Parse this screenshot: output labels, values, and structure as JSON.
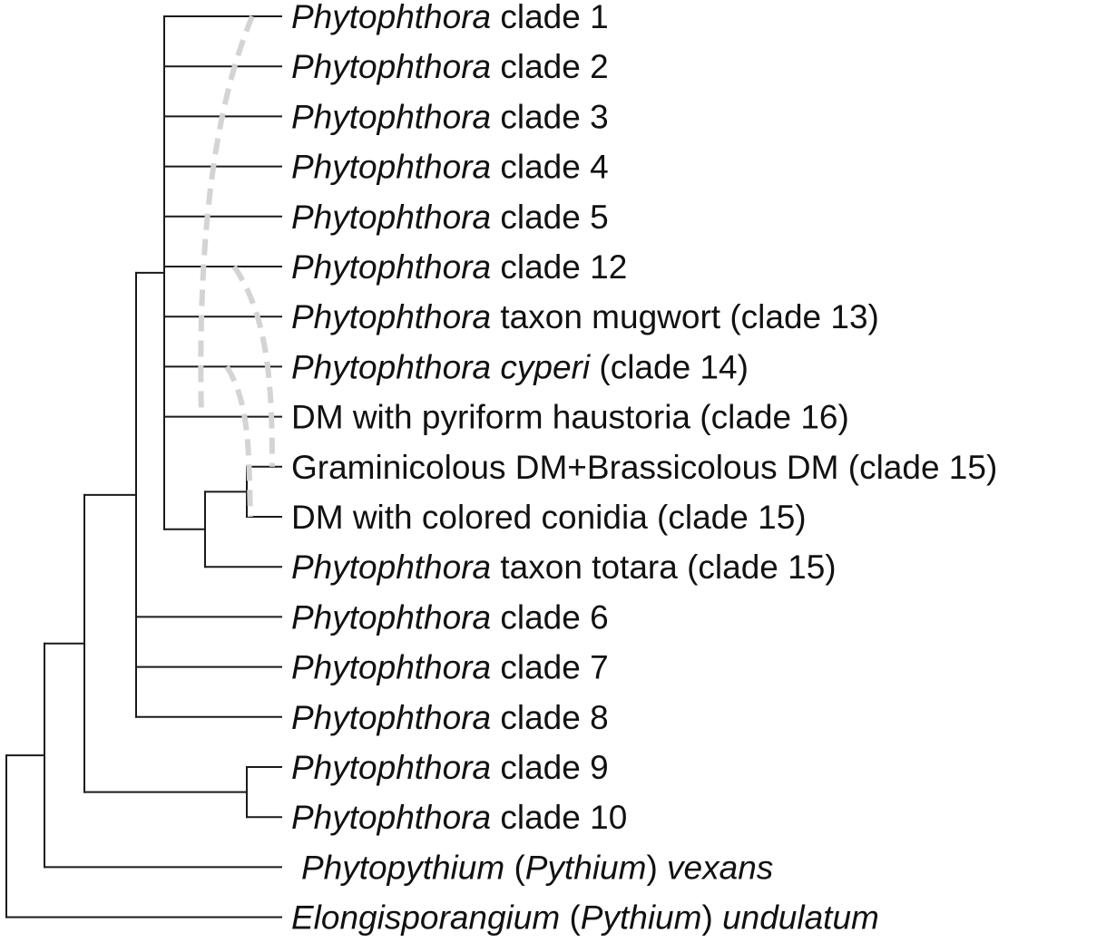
{
  "tree": {
    "tips": [
      {
        "id": "clade1",
        "parts": [
          {
            "text": "Phytophthora",
            "italic": true
          },
          {
            "text": " clade 1",
            "italic": false
          }
        ]
      },
      {
        "id": "clade2",
        "parts": [
          {
            "text": "Phytophthora",
            "italic": true
          },
          {
            "text": " clade 2",
            "italic": false
          }
        ]
      },
      {
        "id": "clade3",
        "parts": [
          {
            "text": "Phytophthora",
            "italic": true
          },
          {
            "text": " clade 3",
            "italic": false
          }
        ]
      },
      {
        "id": "clade4",
        "parts": [
          {
            "text": "Phytophthora",
            "italic": true
          },
          {
            "text": " clade 4",
            "italic": false
          }
        ]
      },
      {
        "id": "clade5",
        "parts": [
          {
            "text": "Phytophthora",
            "italic": true
          },
          {
            "text": " clade 5",
            "italic": false
          }
        ]
      },
      {
        "id": "clade12",
        "parts": [
          {
            "text": "Phytophthora",
            "italic": true
          },
          {
            "text": " clade 12",
            "italic": false
          }
        ]
      },
      {
        "id": "mugwort",
        "parts": [
          {
            "text": "Phytophthora",
            "italic": true
          },
          {
            "text": " taxon mugwort (clade 13)",
            "italic": false
          }
        ]
      },
      {
        "id": "cyperi",
        "parts": [
          {
            "text": "Phytophthora cyperi",
            "italic": true
          },
          {
            "text": " (clade 14)",
            "italic": false
          }
        ]
      },
      {
        "id": "dm_pyriform",
        "parts": [
          {
            "text": "DM with pyriform haustoria (clade 16)",
            "italic": false
          }
        ]
      },
      {
        "id": "dm_gram",
        "parts": [
          {
            "text": "Graminicolous DM+Brassicolous DM (clade 15)",
            "italic": false
          }
        ]
      },
      {
        "id": "dm_colored",
        "parts": [
          {
            "text": "DM with colored conidia (clade 15)",
            "italic": false
          }
        ]
      },
      {
        "id": "totara",
        "parts": [
          {
            "text": "Phytophthora",
            "italic": true
          },
          {
            "text": " taxon totara (clade 15)",
            "italic": false
          }
        ]
      },
      {
        "id": "clade6",
        "parts": [
          {
            "text": "Phytophthora",
            "italic": true
          },
          {
            "text": " clade 6",
            "italic": false
          }
        ]
      },
      {
        "id": "clade7",
        "parts": [
          {
            "text": "Phytophthora",
            "italic": true
          },
          {
            "text": " clade 7",
            "italic": false
          }
        ]
      },
      {
        "id": "clade8",
        "parts": [
          {
            "text": "Phytophthora",
            "italic": true
          },
          {
            "text": " clade 8",
            "italic": false
          }
        ]
      },
      {
        "id": "clade9",
        "parts": [
          {
            "text": "Phytophthora",
            "italic": true
          },
          {
            "text": " clade 9",
            "italic": false
          }
        ]
      },
      {
        "id": "clade10",
        "parts": [
          {
            "text": "Phytophthora",
            "italic": true
          },
          {
            "text": " clade 10",
            "italic": false
          }
        ]
      },
      {
        "id": "vexans",
        "parts": [
          {
            "text": "Phytopythium",
            "italic": true
          },
          {
            "text": " (",
            "italic": false
          },
          {
            "text": "Pythium",
            "italic": true
          },
          {
            "text": ") ",
            "italic": false
          },
          {
            "text": "vexans",
            "italic": true
          }
        ]
      },
      {
        "id": "undulatum",
        "parts": [
          {
            "text": "Elongisporangium",
            "italic": true
          },
          {
            "text": " (",
            "italic": false
          },
          {
            "text": "Pythium",
            "italic": true
          },
          {
            "text": ") ",
            "italic": false
          },
          {
            "text": "undulatum",
            "italic": true
          }
        ]
      }
    ],
    "topology": [
      "undulatum",
      [
        "vexans",
        [
          [
            "clade9",
            "clade10"
          ],
          [
            "clade6",
            "clade7",
            "clade8",
            [
              "clade1",
              "clade2",
              "clade3",
              "clade4",
              "clade5",
              "clade12",
              "mugwort",
              "cyperi",
              "dm_pyriform",
              [
                [
                  "dm_gram",
                  "dm_colored"
                ],
                "totara"
              ]
            ]
          ]
        ]
      ]
    ],
    "dashed_links": [
      {
        "from": "clade1",
        "to": "dm_pyriform"
      },
      {
        "from": "clade12",
        "to": "dm_gram"
      },
      {
        "from": "cyperi",
        "to": "dm_colored"
      }
    ],
    "colors": {
      "branch": "#1a1a1a",
      "dashed_link": "#d4d4d4",
      "label": "#111111"
    }
  }
}
